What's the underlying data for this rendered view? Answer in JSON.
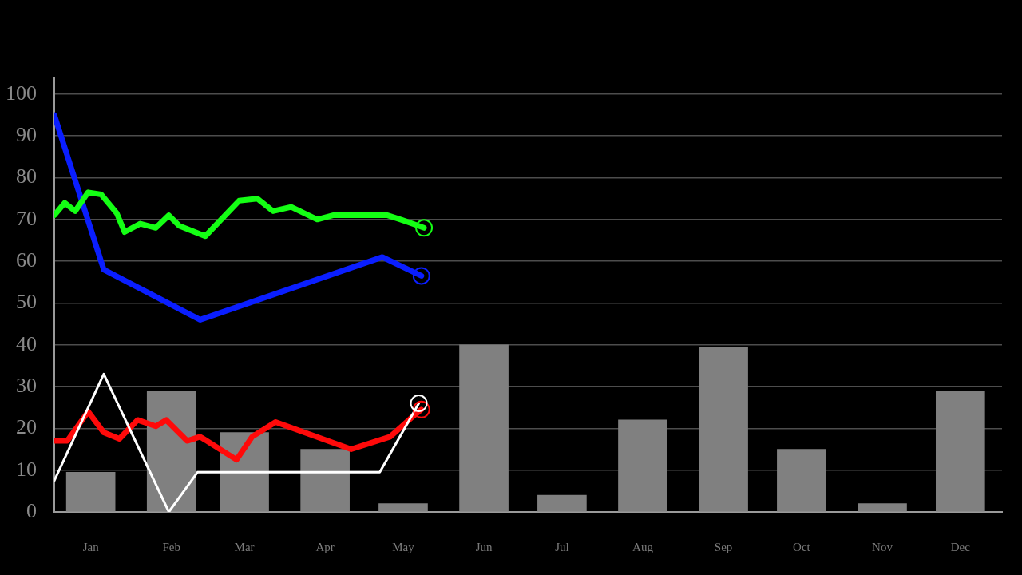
{
  "chart_data": {
    "type": "bar",
    "x": [
      "--01-15",
      "--02-15",
      "--03-15",
      "--04-15",
      "--05-15",
      "--06-15",
      "--07-15",
      "--08-15",
      "--09-15",
      "--10-15",
      "--11-15",
      "--12-15"
    ],
    "xlim": [
      "--01-01",
      "--12-31"
    ],
    "xticks": [
      {
        "value": "--01-15",
        "label": "Jan"
      },
      {
        "value": "--02-15",
        "label": "Feb"
      },
      {
        "value": "--03-15",
        "label": "Mar"
      },
      {
        "value": "--04-15",
        "label": "Apr"
      },
      {
        "value": "--05-15",
        "label": "May"
      },
      {
        "value": "--06-15",
        "label": "Jun"
      },
      {
        "value": "--07-15",
        "label": "Jul"
      },
      {
        "value": "--08-15",
        "label": "Aug"
      },
      {
        "value": "--09-15",
        "label": "Sep"
      },
      {
        "value": "--10-15",
        "label": "Oct"
      },
      {
        "value": "--11-15",
        "label": "Nov"
      },
      {
        "value": "--12-15",
        "label": "Dec"
      }
    ],
    "ylim": [
      0,
      104
    ],
    "yticks": [
      0,
      10,
      20,
      30,
      40,
      50,
      60,
      70,
      80,
      90,
      100
    ],
    "grid": "y",
    "series": [
      {
        "color": "#808080",
        "values": [
          9.5,
          29,
          19,
          15,
          2,
          40,
          4,
          22,
          39.5,
          15,
          2,
          29
        ]
      },
      {
        "type": "line",
        "color": "#0a1eff",
        "x": [
          "--01-01",
          "--01-20",
          "--02-26",
          "--05-07",
          "--05-22"
        ],
        "values": [
          95,
          58,
          46,
          61,
          56.5
        ]
      },
      {
        "type": "line",
        "color": "#14ff14",
        "x": [
          "--01-01",
          "--01-05",
          "--01-09",
          "--01-14",
          "--01-19",
          "--01-25",
          "--01-28",
          "--02-03",
          "--02-09",
          "--02-14",
          "--02-18",
          "--02-28",
          "--03-13",
          "--03-20",
          "--03-26",
          "--04-02",
          "--04-12",
          "--04-18",
          "--04-30",
          "--05-09",
          "--05-14",
          "--05-23"
        ],
        "values": [
          71,
          74,
          72,
          76.5,
          76,
          71.5,
          67,
          69,
          68,
          71,
          68.5,
          66,
          74.5,
          75,
          72,
          73,
          70,
          71,
          71,
          71,
          70,
          68
        ]
      },
      {
        "type": "line",
        "color": "#ff0a0a",
        "x": [
          "--01-01",
          "--01-06",
          "--01-14",
          "--01-20",
          "--01-26",
          "--02-02",
          "--02-09",
          "--02-13",
          "--02-21",
          "--02-26",
          "--03-12",
          "--03-18",
          "--03-27",
          "--04-25",
          "--05-10",
          "--05-19",
          "--05-22"
        ],
        "values": [
          17,
          17,
          24,
          19,
          17.5,
          22,
          20.5,
          22,
          17,
          18,
          12.5,
          18,
          21.5,
          15,
          18,
          23,
          24.5
        ]
      },
      {
        "type": "line",
        "color": "#ffffff",
        "x": [
          "--01-01",
          "--01-20",
          "--02-14",
          "--02-25",
          "--05-06",
          "--05-21"
        ],
        "values": [
          7.5,
          33,
          0,
          9.5,
          9.5,
          26
        ]
      },
      {
        "type": "scatter",
        "marker": "circle",
        "colors": [
          "#0a1eff",
          "#14ff14",
          "#ff0a0a",
          "#ffffff"
        ],
        "x": [
          "--05-22",
          "--05-23",
          "--05-22",
          "--05-21"
        ],
        "values": [
          56.5,
          68,
          24.5,
          26
        ]
      }
    ]
  }
}
